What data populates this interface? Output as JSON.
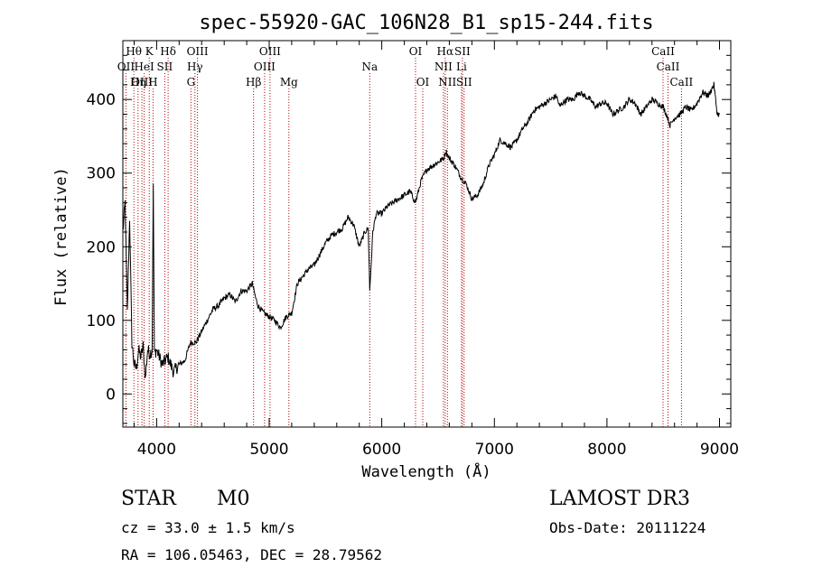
{
  "chart_data": {
    "type": "line",
    "title": "spec-55920-GAC_106N28_B1_sp15-244.fits",
    "xlabel": "Wavelength (Å)",
    "ylabel": "Flux (relative)",
    "xlim": [
      3700,
      9100
    ],
    "ylim": [
      -45,
      480
    ],
    "xticks": [
      4000,
      5000,
      6000,
      7000,
      8000,
      9000
    ],
    "yticks": [
      0,
      100,
      200,
      300,
      400
    ],
    "series": [
      {
        "name": "spectrum",
        "x": [
          3700,
          3720,
          3740,
          3760,
          3780,
          3800,
          3820,
          3840,
          3860,
          3880,
          3900,
          3920,
          3940,
          3960,
          3970,
          3980,
          4000,
          4050,
          4100,
          4150,
          4200,
          4250,
          4300,
          4350,
          4400,
          4450,
          4500,
          4550,
          4600,
          4650,
          4700,
          4750,
          4800,
          4850,
          4880,
          4900,
          4950,
          5000,
          5050,
          5100,
          5150,
          5200,
          5250,
          5300,
          5350,
          5400,
          5450,
          5500,
          5550,
          5600,
          5650,
          5700,
          5750,
          5800,
          5850,
          5880,
          5893,
          5900,
          5920,
          5950,
          6000,
          6050,
          6100,
          6150,
          6200,
          6250,
          6300,
          6350,
          6400,
          6450,
          6500,
          6550,
          6570,
          6600,
          6650,
          6700,
          6750,
          6800,
          6850,
          6900,
          6950,
          7000,
          7050,
          7100,
          7150,
          7200,
          7250,
          7300,
          7350,
          7400,
          7450,
          7500,
          7550,
          7580,
          7600,
          7650,
          7700,
          7750,
          7800,
          7850,
          7900,
          7950,
          8000,
          8050,
          8100,
          8150,
          8200,
          8250,
          8300,
          8350,
          8400,
          8450,
          8500,
          8540,
          8560,
          8600,
          8650,
          8700,
          8750,
          8800,
          8850,
          8900,
          8950,
          8980,
          9000
        ],
        "y": [
          220,
          260,
          110,
          240,
          70,
          40,
          35,
          60,
          50,
          65,
          20,
          60,
          55,
          60,
          280,
          55,
          60,
          40,
          50,
          30,
          40,
          45,
          70,
          70,
          85,
          100,
          115,
          120,
          130,
          135,
          125,
          140,
          140,
          150,
          130,
          120,
          110,
          105,
          100,
          90,
          105,
          110,
          150,
          160,
          170,
          175,
          190,
          205,
          215,
          220,
          225,
          240,
          230,
          200,
          220,
          225,
          140,
          160,
          220,
          245,
          245,
          255,
          260,
          265,
          270,
          275,
          260,
          290,
          305,
          310,
          315,
          320,
          330,
          320,
          310,
          295,
          285,
          265,
          270,
          285,
          310,
          325,
          345,
          340,
          335,
          345,
          360,
          370,
          385,
          390,
          395,
          400,
          405,
          390,
          395,
          400,
          400,
          410,
          405,
          400,
          390,
          395,
          395,
          380,
          385,
          390,
          400,
          395,
          380,
          390,
          400,
          395,
          390,
          375,
          365,
          375,
          380,
          390,
          385,
          395,
          410,
          405,
          420,
          380,
          380
        ]
      }
    ],
    "emission_lines": [
      {
        "label": "Hθ",
        "wl": 3798,
        "row": 1
      },
      {
        "label": "K",
        "wl": 3934,
        "row": 1
      },
      {
        "label": "Hδ",
        "wl": 4102,
        "row": 1
      },
      {
        "label": "OIII",
        "wl": 4363,
        "row": 1
      },
      {
        "label": "OIII",
        "wl": 5007,
        "row": 1
      },
      {
        "label": "OI",
        "wl": 6300,
        "row": 1
      },
      {
        "label": "Hα",
        "wl": 6563,
        "row": 1
      },
      {
        "label": "SII",
        "wl": 6716,
        "row": 1
      },
      {
        "label": "CaII",
        "wl": 8498,
        "row": 1
      },
      {
        "label": "OII",
        "wl": 3727,
        "row": 2
      },
      {
        "label": "HeI",
        "wl": 3889,
        "row": 2
      },
      {
        "label": "SII",
        "wl": 4072,
        "row": 2
      },
      {
        "label": "Hγ",
        "wl": 4340,
        "row": 2
      },
      {
        "label": "OIII",
        "wl": 4959,
        "row": 2
      },
      {
        "label": "Na",
        "wl": 5893,
        "row": 2
      },
      {
        "label": "NII",
        "wl": 6548,
        "row": 2
      },
      {
        "label": "Li",
        "wl": 6708,
        "row": 2
      },
      {
        "label": "CaII",
        "wl": 8542,
        "row": 2
      },
      {
        "label": "OIII",
        "wl": 3869,
        "row": 3
      },
      {
        "label": "Hη",
        "wl": 3835,
        "row": 3
      },
      {
        "label": "H",
        "wl": 3968,
        "row": 3
      },
      {
        "label": "G",
        "wl": 4305,
        "row": 3
      },
      {
        "label": "Hβ",
        "wl": 4861,
        "row": 3
      },
      {
        "label": "Mg",
        "wl": 5175,
        "row": 3
      },
      {
        "label": "OI",
        "wl": 6364,
        "row": 3
      },
      {
        "label": "NII",
        "wl": 6583,
        "row": 3
      },
      {
        "label": "SII",
        "wl": 6731,
        "row": 3
      },
      {
        "label": "CaII",
        "wl": 8662,
        "row": 3
      }
    ]
  },
  "info": {
    "object_class": "STAR",
    "subclass": "M0",
    "survey": "LAMOST DR3",
    "cz": "cz = 33.0 ± 1.5 km/s",
    "obs_date": "Obs-Date: 20111224",
    "coords": "RA = 106.05463, DEC =  28.79562"
  },
  "colors": {
    "axes": "#000000",
    "spectrum": "#000000",
    "lines": "#b00000"
  }
}
